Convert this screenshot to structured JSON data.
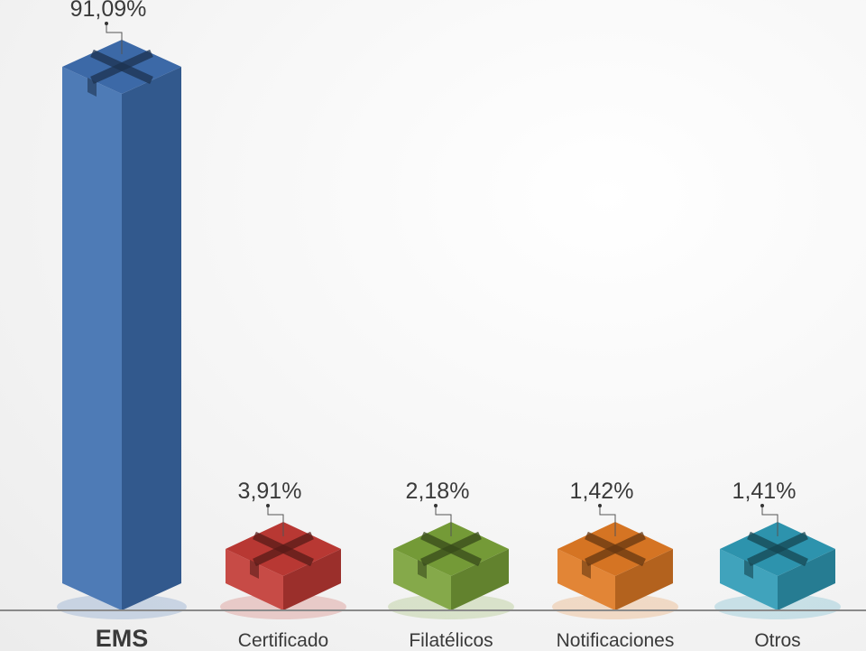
{
  "chart_data": {
    "type": "bar",
    "categories": [
      "EMS",
      "Certificado",
      "Filatélicos",
      "Notificaciones",
      "Otros"
    ],
    "values": [
      91.09,
      3.91,
      2.18,
      1.42,
      1.41
    ],
    "value_labels": [
      "91,09%",
      "3,91%",
      "2,18%",
      "1,42%",
      "1,41%"
    ],
    "colors": [
      "#3f6fb0",
      "#c23b36",
      "#7aa23a",
      "#e07a25",
      "#2f9bb6"
    ],
    "ylim": [
      0,
      100
    ],
    "grid": false,
    "legend": "none",
    "style": "3d-box"
  }
}
